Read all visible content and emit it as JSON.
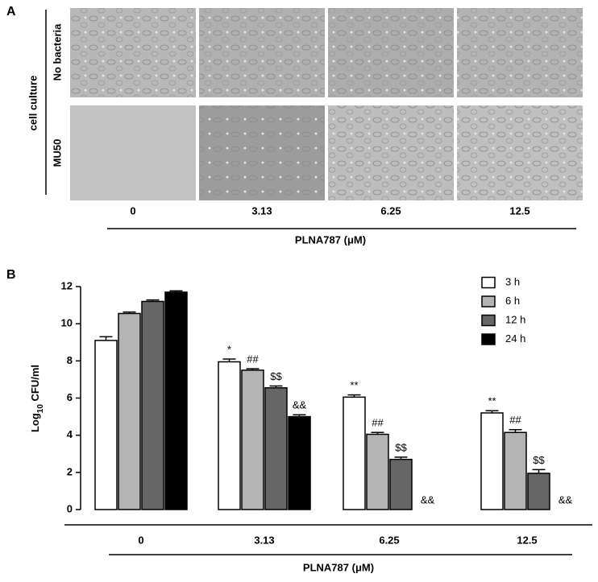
{
  "panel_a": {
    "label": "A",
    "group_label": "cell culture",
    "rows": [
      "No bacteria",
      "MU50"
    ],
    "columns": [
      "0",
      "3.13",
      "6.25",
      "12.5"
    ],
    "x_label": "PLNA787 (μM)"
  },
  "chart_data": {
    "type": "bar",
    "panel_label": "B",
    "y_label": [
      "Log",
      "10",
      " CFU/ml"
    ],
    "x_label": "PLNA787 (μM)",
    "categories": [
      "0",
      "3.13",
      "6.25",
      "12.5"
    ],
    "ylim": [
      0,
      12
    ],
    "yticks": [
      0,
      2,
      4,
      6,
      8,
      10,
      12
    ],
    "legend": "top-right",
    "series": [
      {
        "name": "3 h",
        "color": "#ffffff",
        "values": [
          9.1,
          7.95,
          6.05,
          5.2
        ],
        "errors": [
          0.2,
          0.15,
          0.12,
          0.12
        ],
        "markers": [
          null,
          "*",
          "**",
          "**"
        ]
      },
      {
        "name": "6 h",
        "color": "#b4b4b4",
        "values": [
          10.55,
          7.5,
          4.05,
          4.15
        ],
        "errors": [
          0.08,
          0.08,
          0.1,
          0.15
        ],
        "markers": [
          null,
          "##",
          "##",
          "##"
        ]
      },
      {
        "name": "12 h",
        "color": "#666666",
        "values": [
          11.2,
          6.55,
          2.7,
          1.95
        ],
        "errors": [
          0.08,
          0.1,
          0.12,
          0.2
        ],
        "markers": [
          null,
          "$$",
          "$$",
          "$$"
        ]
      },
      {
        "name": "24 h",
        "color": "#000000",
        "values": [
          11.7,
          5.0,
          null,
          null
        ],
        "errors": [
          0.07,
          0.1,
          null,
          null
        ],
        "markers": [
          null,
          "&&",
          "&&",
          "&&"
        ]
      }
    ]
  }
}
